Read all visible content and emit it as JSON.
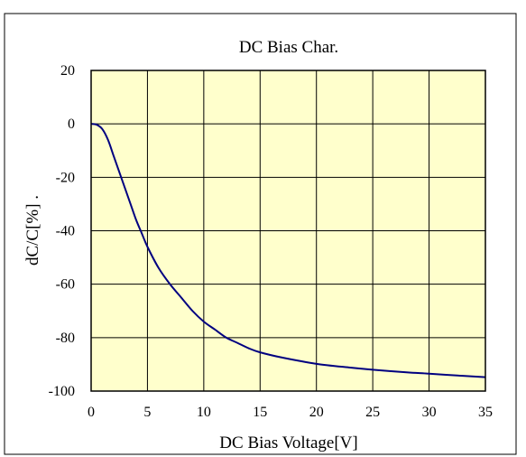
{
  "chart_data": {
    "type": "line",
    "title": "DC Bias Char.",
    "xlabel": "DC Bias Voltage[V]",
    "ylabel": "dC/C[%] .",
    "xlim": [
      0,
      35
    ],
    "ylim": [
      -100,
      20
    ],
    "x_ticks": [
      "0",
      "5",
      "10",
      "15",
      "20",
      "25",
      "30",
      "35"
    ],
    "y_ticks": [
      "20",
      "0",
      "-20",
      "-40",
      "-60",
      "-80",
      "-100"
    ],
    "x_tick_values": [
      0,
      5,
      10,
      15,
      20,
      25,
      30,
      35
    ],
    "y_tick_values": [
      20,
      0,
      -20,
      -40,
      -60,
      -80,
      -100
    ],
    "grid": true,
    "legend": false,
    "colors": {
      "plot_background": "#ffffcc",
      "line": "#000080",
      "grid": "#000000"
    },
    "series": [
      {
        "x": [
          0,
          0.5,
          1,
          1.5,
          2,
          2.5,
          3,
          3.5,
          4,
          4.5,
          5,
          6,
          7,
          8,
          9,
          10,
          11,
          12,
          13,
          14,
          15,
          17,
          20,
          23,
          25,
          28,
          30,
          33,
          35
        ],
        "values": [
          0,
          -0.3,
          -2,
          -6,
          -12,
          -18,
          -24,
          -30,
          -36,
          -41,
          -46,
          -54,
          -60,
          -65,
          -70,
          -74,
          -77,
          -80,
          -82,
          -84,
          -85.5,
          -87.5,
          -89.8,
          -91.2,
          -92,
          -93,
          -93.5,
          -94.3,
          -94.8
        ]
      }
    ]
  }
}
